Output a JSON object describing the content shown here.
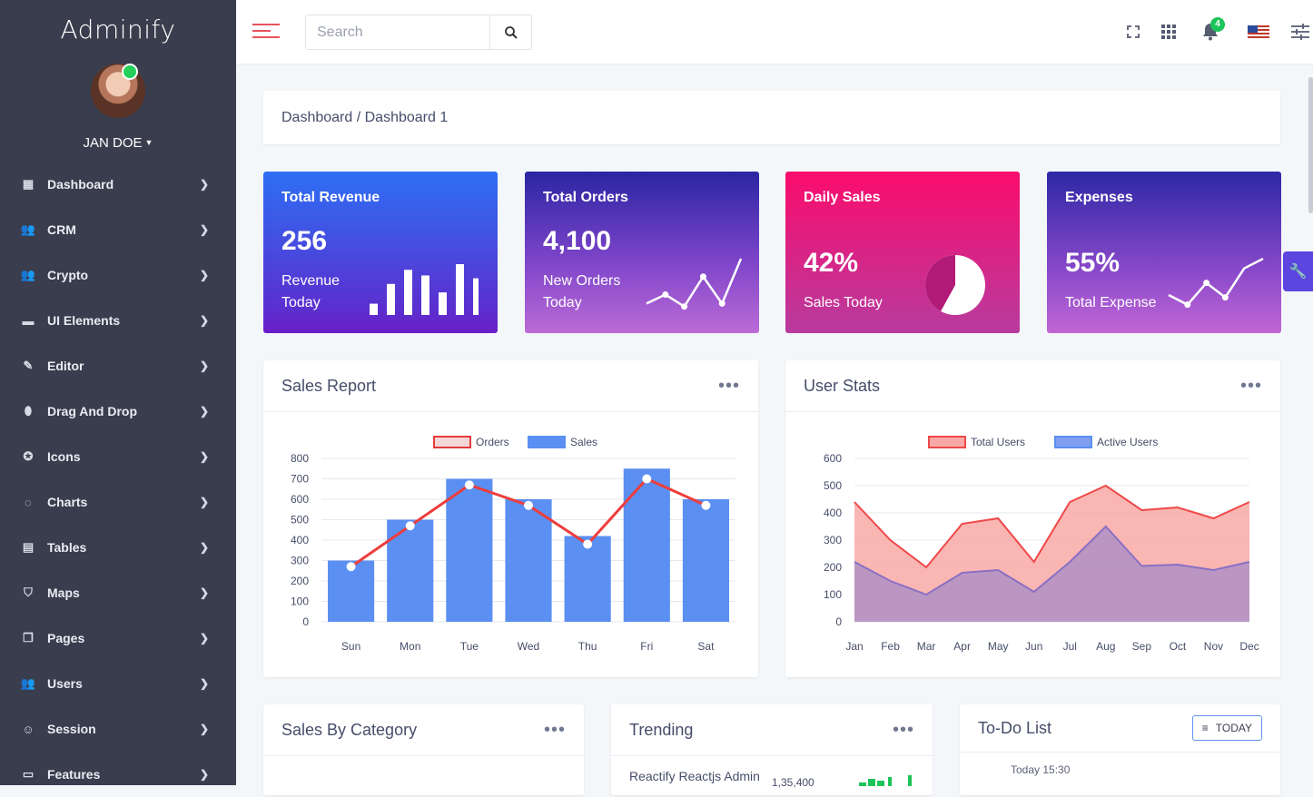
{
  "brand": "Adminify",
  "user": {
    "name": "JAN DOE"
  },
  "sidebar": {
    "items": [
      {
        "label": "Dashboard",
        "icon": "dashboard-icon",
        "glyph": "▦"
      },
      {
        "label": "CRM",
        "icon": "people-icon",
        "glyph": "👥"
      },
      {
        "label": "Crypto",
        "icon": "people-icon",
        "glyph": "👥"
      },
      {
        "label": "UI Elements",
        "icon": "ui-elements-icon",
        "glyph": "▬"
      },
      {
        "label": "Editor",
        "icon": "pencil-icon",
        "glyph": "✎"
      },
      {
        "label": "Drag And Drop",
        "icon": "mouse-icon",
        "glyph": "⬮"
      },
      {
        "label": "Icons",
        "icon": "star-circle-icon",
        "glyph": "✪"
      },
      {
        "label": "Charts",
        "icon": "chart-circle-icon",
        "glyph": "◌"
      },
      {
        "label": "Tables",
        "icon": "table-icon",
        "glyph": "▤"
      },
      {
        "label": "Maps",
        "icon": "map-icon",
        "glyph": "⛉"
      },
      {
        "label": "Pages",
        "icon": "pages-icon",
        "glyph": "❐"
      },
      {
        "label": "Users",
        "icon": "people-icon",
        "glyph": "👥"
      },
      {
        "label": "Session",
        "icon": "session-icon",
        "glyph": "☺"
      },
      {
        "label": "Features",
        "icon": "features-icon",
        "glyph": "▭"
      }
    ]
  },
  "search": {
    "placeholder": "Search"
  },
  "notifications": {
    "count": "4"
  },
  "breadcrumb": "Dashboard / Dashboard 1",
  "stats": [
    {
      "title": "Total Revenue",
      "value": "256",
      "sub": [
        "Revenue",
        "Today"
      ],
      "mini_bars": [
        4,
        11,
        16,
        14,
        8,
        18,
        13
      ]
    },
    {
      "title": "Total Orders",
      "value": "4,100",
      "sub": [
        "New Orders",
        "Today"
      ],
      "mini_line": [
        2,
        5,
        1,
        11,
        2,
        17
      ]
    },
    {
      "title": "Daily Sales",
      "value": "42%",
      "sub": [
        "Sales Today"
      ],
      "pie_percent": 42
    },
    {
      "title": "Expenses",
      "value": "55%",
      "sub": [
        "Total Expense"
      ],
      "mini_line": [
        6,
        2,
        11,
        5,
        17,
        21
      ]
    }
  ],
  "sales_report": {
    "title": "Sales Report"
  },
  "user_stats": {
    "title": "User Stats"
  },
  "sales_by_category": {
    "title": "Sales By Category"
  },
  "trending": {
    "title": "Trending",
    "item": "Reactify Reactjs Admin",
    "value": "1,35,400"
  },
  "todo": {
    "title": "To-Do List",
    "filter_label": "TODAY",
    "first_item_time": "Today 15:30"
  },
  "chart_data": [
    {
      "type": "bar",
      "title": "Sales Report",
      "categories": [
        "Sun",
        "Mon",
        "Tue",
        "Wed",
        "Thu",
        "Fri",
        "Sat"
      ],
      "series": [
        {
          "name": "Orders",
          "kind": "line",
          "color": "#ee3d3d",
          "values": [
            270,
            470,
            670,
            570,
            380,
            700,
            570
          ]
        },
        {
          "name": "Sales",
          "kind": "bar",
          "color": "#5b8ff2",
          "values": [
            300,
            500,
            700,
            600,
            420,
            750,
            600
          ]
        }
      ],
      "ylim": [
        0,
        800
      ],
      "yticks": [
        "0",
        "100",
        "200",
        "300",
        "400",
        "500",
        "600",
        "700",
        "800"
      ],
      "legend": "top-center",
      "grid": true
    },
    {
      "type": "area",
      "title": "User Stats",
      "categories": [
        "Jan",
        "Feb",
        "Mar",
        "Apr",
        "May",
        "Jun",
        "Jul",
        "Aug",
        "Sep",
        "Oct",
        "Nov",
        "Dec"
      ],
      "series": [
        {
          "name": "Total Users",
          "color": "#ef4848",
          "fill": "#f8a9a6",
          "values": [
            440,
            300,
            200,
            360,
            380,
            220,
            440,
            500,
            410,
            420,
            380,
            440
          ]
        },
        {
          "name": "Active Users",
          "color": "#8a6fc4",
          "fill": "#a68bc7",
          "values": [
            220,
            150,
            100,
            180,
            190,
            110,
            220,
            350,
            205,
            210,
            190,
            220
          ]
        }
      ],
      "ylim": [
        0,
        600
      ],
      "yticks": [
        "0",
        "100",
        "200",
        "300",
        "400",
        "500",
        "600"
      ],
      "legend": "top-center",
      "grid": true
    }
  ]
}
